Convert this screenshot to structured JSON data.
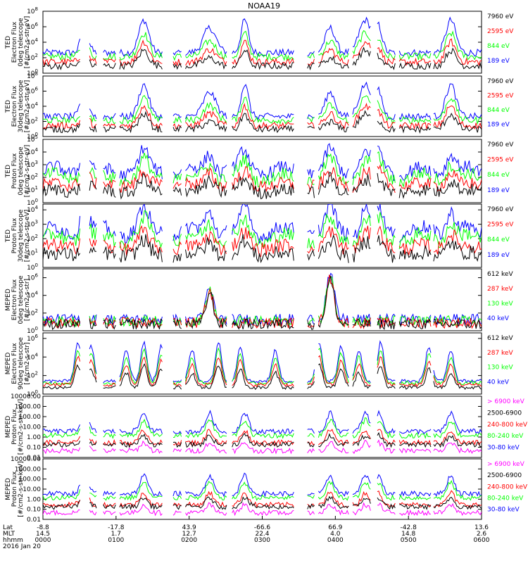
{
  "title": "NOAA19",
  "colors": {
    "black": "#000000",
    "red": "#ff0000",
    "green": "#00ff00",
    "blue": "#0000ff",
    "magenta": "#ff00ff",
    "axis": "#000000",
    "text": "#000000"
  },
  "panels": [
    {
      "name": "ted-electron-0deg",
      "ylabel": [
        "TED",
        "Electron Flux",
        "0deg telescope",
        "[#/cm2-s-str-eV]"
      ],
      "ticks": [
        {
          "v": 0,
          "t": "10^0"
        },
        {
          "v": 2,
          "t": "10^2"
        },
        {
          "v": 4,
          "t": "10^4"
        },
        {
          "v": 6,
          "t": "10^6"
        },
        {
          "v": 8,
          "t": "10^8"
        }
      ],
      "yrange": [
        0,
        8
      ],
      "legend": [
        {
          "text": "7960 eV",
          "color": "#000000"
        },
        {
          "text": "2595 eV",
          "color": "#ff0000"
        },
        {
          "text": "844 eV",
          "color": "#00ff00"
        },
        {
          "text": "189 eV",
          "color": "#0000ff"
        }
      ]
    },
    {
      "name": "ted-electron-30deg",
      "ylabel": [
        "TED",
        "Electron Flux",
        "30deg telescope",
        "[#/cm2-s-str-eV]"
      ],
      "ticks": [
        {
          "v": 0,
          "t": "10^0"
        },
        {
          "v": 2,
          "t": "10^2"
        },
        {
          "v": 4,
          "t": "10^4"
        },
        {
          "v": 6,
          "t": "10^6"
        },
        {
          "v": 8,
          "t": "10^8"
        }
      ],
      "yrange": [
        0,
        8
      ],
      "legend": [
        {
          "text": "7960 eV",
          "color": "#000000"
        },
        {
          "text": "2595 eV",
          "color": "#ff0000"
        },
        {
          "text": "844 eV",
          "color": "#00ff00"
        },
        {
          "text": "189 eV",
          "color": "#0000ff"
        }
      ]
    },
    {
      "name": "ted-proton-0deg",
      "ylabel": [
        "TED",
        "Proton Flux",
        "0deg telescope",
        "[#/cm2-s-str-eV]"
      ],
      "ticks": [
        {
          "v": 0,
          "t": "10^0"
        },
        {
          "v": 1,
          "t": "10^1"
        },
        {
          "v": 2,
          "t": "10^2"
        },
        {
          "v": 3,
          "t": "10^3"
        },
        {
          "v": 4,
          "t": "10^4"
        },
        {
          "v": 5,
          "t": "10^5"
        }
      ],
      "yrange": [
        0,
        5
      ],
      "legend": [
        {
          "text": "7960 eV",
          "color": "#000000"
        },
        {
          "text": "2595 eV",
          "color": "#ff0000"
        },
        {
          "text": "844 eV",
          "color": "#00ff00"
        },
        {
          "text": "189 eV",
          "color": "#0000ff"
        }
      ]
    },
    {
      "name": "ted-proton-30deg",
      "ylabel": [
        "TED",
        "Proton Flux",
        "30deg telescope",
        "[#/cm2-s-str-eV]"
      ],
      "ticks": [
        {
          "v": 0,
          "t": "10^0"
        },
        {
          "v": 1,
          "t": "10^1"
        },
        {
          "v": 2,
          "t": "10^2"
        },
        {
          "v": 3,
          "t": "10^3"
        },
        {
          "v": 4,
          "t": "10^4"
        }
      ],
      "yrange": [
        0,
        4.4
      ],
      "legend": [
        {
          "text": "7960 eV",
          "color": "#000000"
        },
        {
          "text": "2595 eV",
          "color": "#ff0000"
        },
        {
          "text": "844 eV",
          "color": "#00ff00"
        },
        {
          "text": "189 eV",
          "color": "#0000ff"
        }
      ]
    },
    {
      "name": "meped-electron-0deg",
      "ylabel": [
        "MEPED",
        "Electron Flux",
        "0deg telescope",
        "[#/cm2-s-str]"
      ],
      "ticks": [
        {
          "v": 0,
          "t": "10^0"
        },
        {
          "v": 2,
          "t": "10^2"
        },
        {
          "v": 4,
          "t": "10^4"
        },
        {
          "v": 6,
          "t": "10^6"
        }
      ],
      "yrange": [
        0,
        7
      ],
      "legend": [
        {
          "text": "612 keV",
          "color": "#000000"
        },
        {
          "text": "287 keV",
          "color": "#ff0000"
        },
        {
          "text": "130 keV",
          "color": "#00ff00"
        },
        {
          "text": "40 keV",
          "color": "#0000ff"
        }
      ]
    },
    {
      "name": "meped-electron-90deg",
      "ylabel": [
        "MEPED",
        "Electron Flux",
        "90deg telescope",
        "[#/cm2-s-str]"
      ],
      "ticks": [
        {
          "v": 0,
          "t": "10^0"
        },
        {
          "v": 2,
          "t": "10^2"
        },
        {
          "v": 4,
          "t": "10^4"
        },
        {
          "v": 6,
          "t": "10^6"
        }
      ],
      "yrange": [
        0,
        6.6
      ],
      "legend": [
        {
          "text": "612 keV",
          "color": "#000000"
        },
        {
          "text": "287 keV",
          "color": "#ff0000"
        },
        {
          "text": "130 keV",
          "color": "#00ff00"
        },
        {
          "text": "40 keV",
          "color": "#0000ff"
        }
      ]
    },
    {
      "name": "meped-proton-0deg",
      "ylabel": [
        "MEPED",
        "Proton Flux",
        "[#/cm2-s-str-keV]"
      ],
      "ticks": [
        {
          "v": -2,
          "t": "0.01"
        },
        {
          "v": -1,
          "t": "0.10"
        },
        {
          "v": 0,
          "t": "1.00"
        },
        {
          "v": 1,
          "t": "10.00"
        },
        {
          "v": 2,
          "t": "100.00"
        },
        {
          "v": 3,
          "t": "1000.00"
        },
        {
          "v": 4,
          "t": "10000.00"
        }
      ],
      "yrange": [
        -2,
        4
      ],
      "legend": [
        {
          "text": "> 6900 keV",
          "color": "#ff00ff"
        },
        {
          "text": "2500-6900",
          "color": "#000000"
        },
        {
          "text": "240-800 keV",
          "color": "#ff0000"
        },
        {
          "text": "80-240 keV",
          "color": "#00ff00"
        },
        {
          "text": "30-80 keV",
          "color": "#0000ff"
        }
      ]
    },
    {
      "name": "meped-proton-90deg",
      "ylabel": [
        "MEPED",
        "Proton Flux",
        "[#/cm2-s-str-keV]"
      ],
      "ticks": [
        {
          "v": -2,
          "t": "0.01"
        },
        {
          "v": -1,
          "t": "0.10"
        },
        {
          "v": 0,
          "t": "1.00"
        },
        {
          "v": 1,
          "t": "10.00"
        },
        {
          "v": 2,
          "t": "100.00"
        },
        {
          "v": 3,
          "t": "1000.00"
        },
        {
          "v": 4,
          "t": "10000.00"
        }
      ],
      "yrange": [
        -2,
        4
      ],
      "legend": [
        {
          "text": "> 6900 keV",
          "color": "#ff00ff"
        },
        {
          "text": "2500-6900",
          "color": "#000000"
        },
        {
          "text": "240-800 keV",
          "color": "#ff0000"
        },
        {
          "text": "80-240 keV",
          "color": "#00ff00"
        },
        {
          "text": "30-80 keV",
          "color": "#0000ff"
        }
      ]
    }
  ],
  "xaxis": {
    "row_labels": [
      "Lat",
      "MLT",
      "hhmm",
      "2016 Jan 20"
    ],
    "ticks": [
      {
        "lat": "-8.8",
        "mlt": "14.5",
        "hhmm": "0000"
      },
      {
        "lat": "-17.8",
        "mlt": "1.7",
        "hhmm": "0100"
      },
      {
        "lat": "43.9",
        "mlt": "12.7",
        "hhmm": "0200"
      },
      {
        "lat": "-66.6",
        "mlt": "22.4",
        "hhmm": "0300"
      },
      {
        "lat": "66.9",
        "mlt": "4.0",
        "hhmm": "0400"
      },
      {
        "lat": "-42.8",
        "mlt": "14.8",
        "hhmm": "0500"
      },
      {
        "lat": "13.6",
        "mlt": "2.6",
        "hhmm": "0600"
      }
    ]
  },
  "chart_data": {
    "type": "line",
    "title": "NOAA19",
    "x": {
      "unit": "hhmm",
      "start": "0000",
      "end": "0600",
      "date": "2016 Jan 20"
    },
    "series_per_panel": "4-5 energy channels per panel, log-scaled flux vs. time",
    "notes": "Time series of particle flux over six hours; enhancements near 0020, 0120, 0220, 0315, 0420, 0535."
  }
}
